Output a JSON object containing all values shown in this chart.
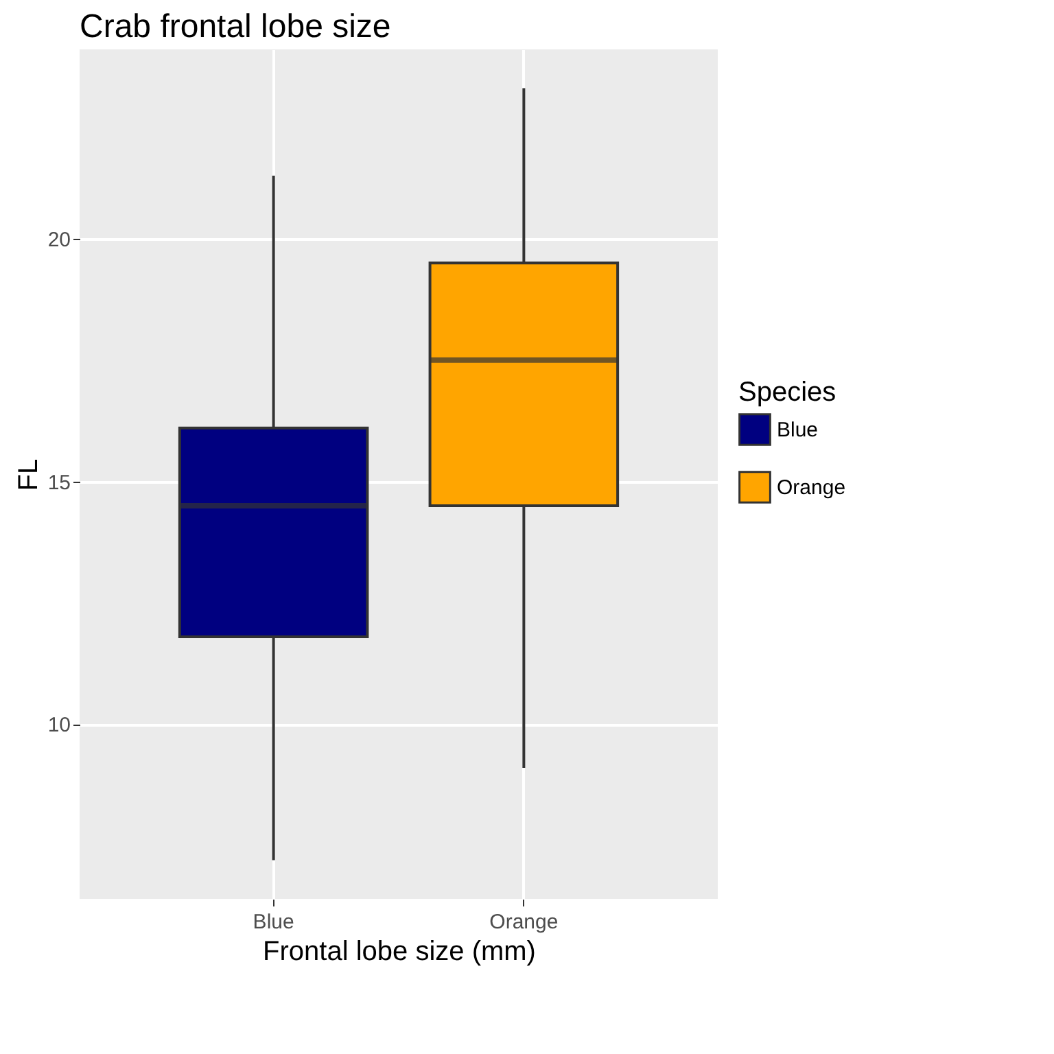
{
  "chart_data": {
    "type": "box",
    "title": "Crab frontal lobe size",
    "xlabel": "Frontal lobe size (mm)",
    "ylabel": "FL",
    "legend_title": "Species",
    "categories": [
      "Blue",
      "Orange"
    ],
    "series": [
      {
        "name": "Blue",
        "color": "#000080",
        "boxes": [
          {
            "low": 7.2,
            "q1": 11.8,
            "median": 14.5,
            "q3": 16.1,
            "high": 21.3
          },
          null
        ]
      },
      {
        "name": "Orange",
        "color": "#ffa500",
        "boxes": [
          null,
          {
            "low": 9.1,
            "q1": 14.5,
            "median": 17.5,
            "q3": 19.5,
            "high": 23.1
          }
        ]
      }
    ],
    "ylim": [
      6.4,
      23.9
    ],
    "yticks": [
      10,
      15,
      20
    ],
    "grid": true,
    "legend": "right"
  }
}
